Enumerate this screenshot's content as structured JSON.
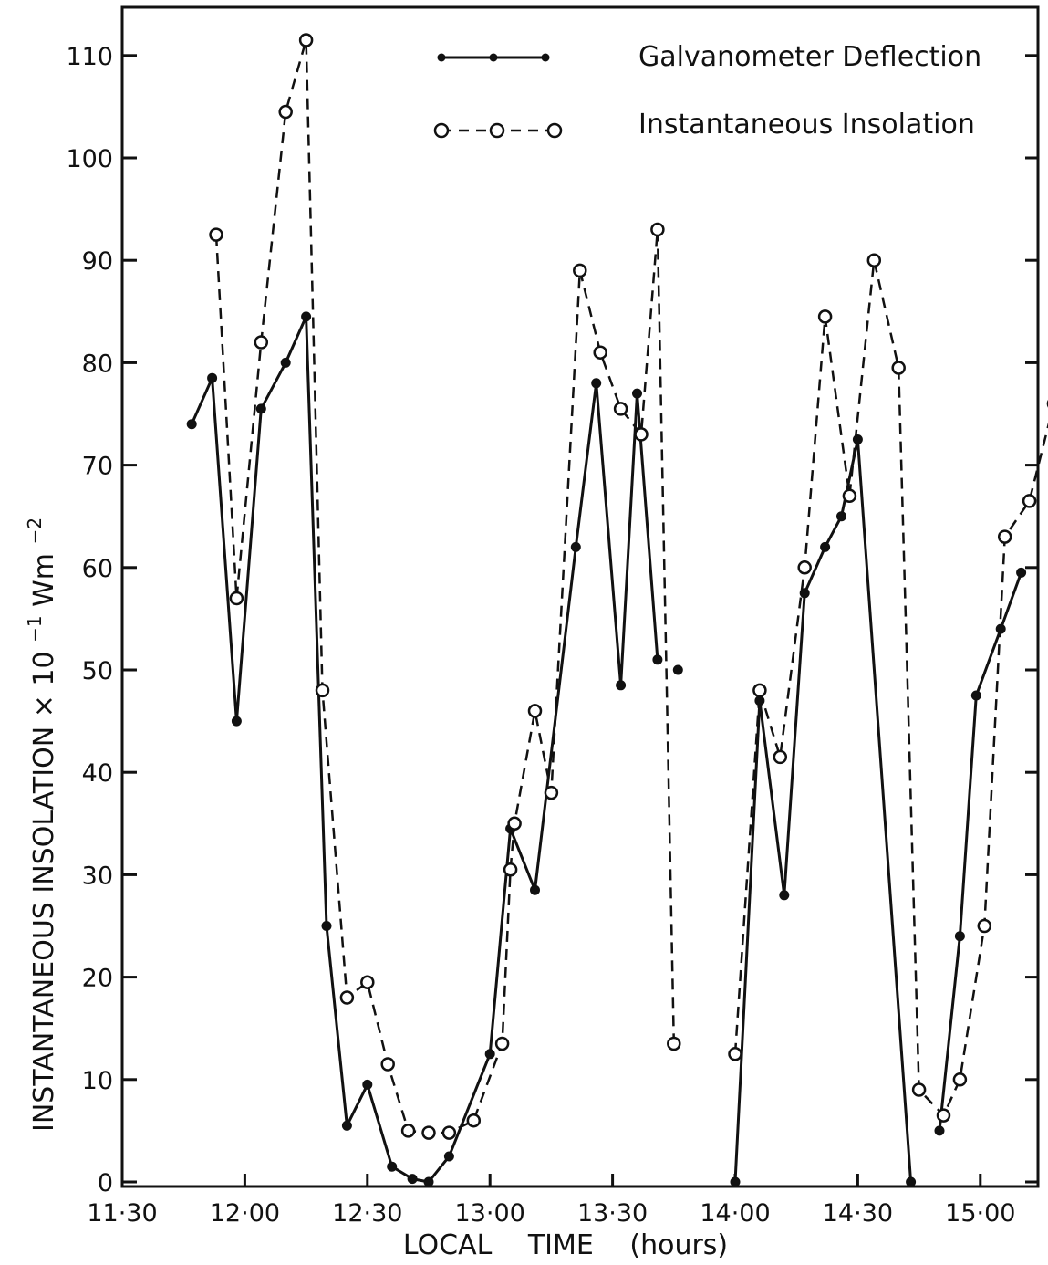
{
  "chart_data": {
    "type": "line",
    "xlabel": "LOCAL TIME (hours)",
    "ylabel": "INSTANTANEOUS INSOLATION × 10⁻¹ Wm⁻²",
    "ylabel_parts": {
      "left": "INSTANTANEOUS",
      "right": "INSOLATION",
      "factor": "× 10",
      "exp1": "−1",
      "unit": "Wm",
      "exp2": "−2"
    },
    "x_tick_labels": [
      "11·30",
      "12·00",
      "12·30",
      "13·00",
      "13·30",
      "14·00",
      "14·30",
      "15·00"
    ],
    "x_tick_minutes": [
      690,
      720,
      750,
      780,
      810,
      840,
      870,
      900
    ],
    "xlim_minutes": [
      690,
      910
    ],
    "y_ticks": [
      0,
      10,
      20,
      30,
      40,
      50,
      60,
      70,
      80,
      90,
      100,
      110
    ],
    "ylim": [
      0,
      114
    ],
    "grid": false,
    "legend_position": "top-right",
    "series": [
      {
        "name": "Galvanometer Deflection",
        "style": "solid-filled",
        "segments": [
          [
            [
              707,
              74
            ],
            [
              712,
              78.5
            ],
            [
              718,
              45
            ],
            [
              724,
              75.5
            ],
            [
              730,
              80
            ],
            [
              735,
              84.5
            ],
            [
              740,
              25
            ],
            [
              745,
              5.5
            ],
            [
              750,
              9.5
            ],
            [
              756,
              1.5
            ],
            [
              761,
              0.3
            ],
            [
              765,
              0
            ],
            [
              770,
              2.5
            ],
            [
              780,
              12.5
            ],
            [
              785,
              34.5
            ],
            [
              791,
              28.5
            ],
            [
              801,
              62
            ],
            [
              806,
              78
            ],
            [
              812,
              48.5
            ],
            [
              816,
              77
            ],
            [
              821,
              51
            ]
          ],
          [
            [
              826,
              50
            ]
          ],
          [
            [
              840,
              0
            ],
            [
              846,
              47
            ],
            [
              852,
              28
            ],
            [
              857,
              57.5
            ],
            [
              862,
              62
            ],
            [
              866,
              65
            ],
            [
              870,
              72.5
            ],
            [
              883,
              0
            ]
          ],
          [
            [
              890,
              5
            ],
            [
              895,
              24
            ],
            [
              899,
              47.5
            ],
            [
              905,
              54
            ],
            [
              910,
              59.5
            ]
          ]
        ]
      },
      {
        "name": "Instantaneous Insolation",
        "style": "dashed-open",
        "segments": [
          [
            [
              713,
              92.5
            ],
            [
              718,
              57
            ],
            [
              724,
              82
            ],
            [
              730,
              104.5
            ],
            [
              735,
              111.5
            ],
            [
              739,
              48
            ],
            [
              745,
              18
            ],
            [
              750,
              19.5
            ],
            [
              755,
              11.5
            ],
            [
              760,
              5
            ],
            [
              765,
              4.8
            ],
            [
              770,
              4.8
            ],
            [
              776,
              6
            ],
            [
              783,
              13.5
            ],
            [
              785,
              30.5
            ],
            [
              786,
              35
            ],
            [
              791,
              46
            ],
            [
              795,
              38
            ],
            [
              802,
              89
            ],
            [
              807,
              81
            ],
            [
              812,
              75.5
            ],
            [
              817,
              73
            ],
            [
              821,
              93
            ],
            [
              825,
              13.5
            ]
          ],
          [
            [
              840,
              12.5
            ],
            [
              846,
              48
            ],
            [
              851,
              41.5
            ],
            [
              857,
              60
            ],
            [
              862,
              84.5
            ],
            [
              868,
              67
            ],
            [
              874,
              90
            ],
            [
              880,
              79.5
            ],
            [
              885,
              9
            ],
            [
              891,
              6.5
            ],
            [
              895,
              10
            ],
            [
              901,
              25
            ],
            [
              906,
              63
            ],
            [
              912,
              66.5
            ],
            [
              918,
              76
            ]
          ]
        ]
      }
    ]
  },
  "legend": {
    "items": [
      {
        "label": "Galvanometer Deflection",
        "style": "solid-filled"
      },
      {
        "label": "Instantaneous Insolation",
        "style": "dashed-open"
      }
    ]
  }
}
